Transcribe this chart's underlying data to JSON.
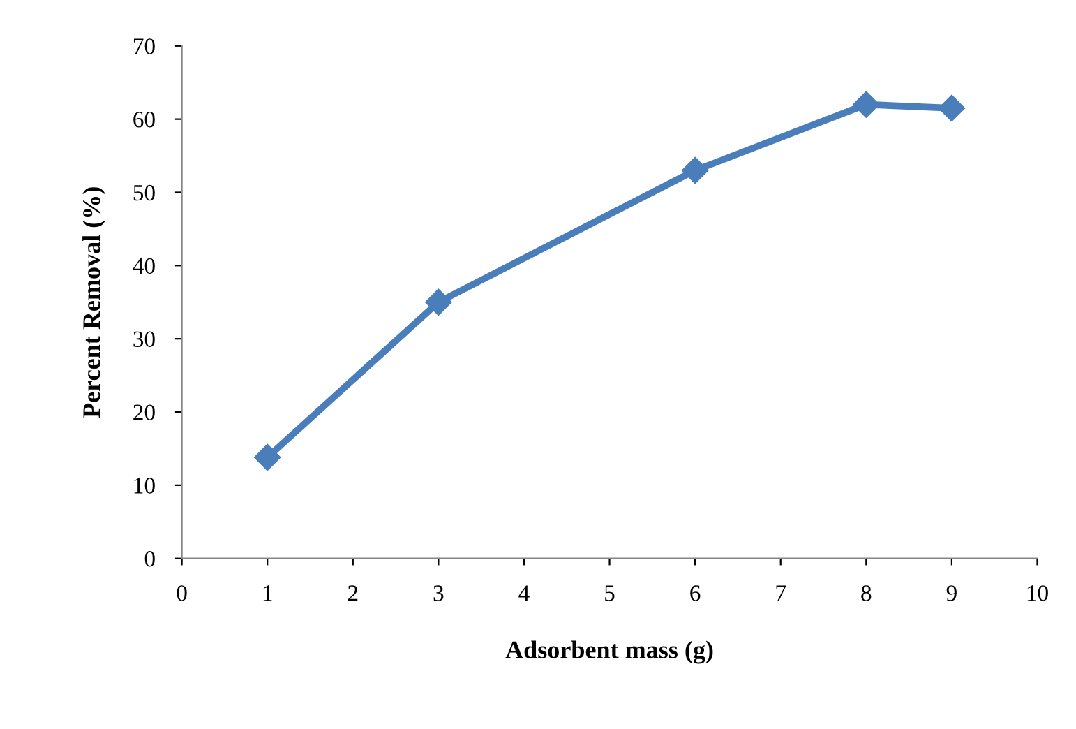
{
  "chart_data": {
    "type": "line",
    "xlabel": "Adsorbent mass (g)",
    "ylabel": "Percent Removal (%)",
    "x": [
      1,
      3,
      6,
      8,
      9
    ],
    "series": [
      {
        "color": "#4a7ebb",
        "values": [
          13.8,
          35,
          53,
          62,
          61.5
        ]
      }
    ],
    "xlim": [
      0,
      10
    ],
    "xticks": [
      0,
      1,
      2,
      3,
      4,
      5,
      6,
      7,
      8,
      9,
      10
    ],
    "ylim": [
      0,
      70
    ],
    "yticks": [
      0,
      10,
      20,
      30,
      40,
      50,
      60,
      70
    ],
    "grid": false,
    "legend": false,
    "marker": "diamond",
    "line_style": "solid"
  }
}
